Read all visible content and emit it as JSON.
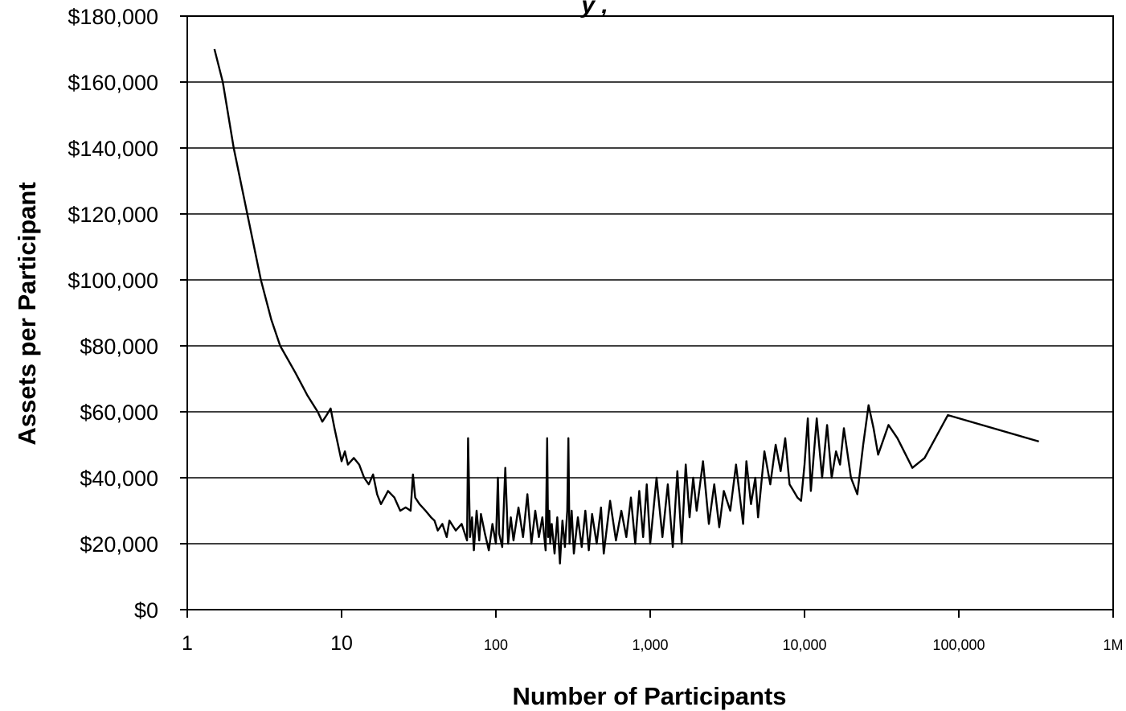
{
  "chart_data": {
    "type": "line",
    "title_fragment": "y ,",
    "xlabel": "Number of Participants",
    "ylabel": "Assets per Participant",
    "x_scale": "log",
    "xlim": [
      1,
      1000000
    ],
    "ylim": [
      0,
      180000
    ],
    "grid": "horizontal",
    "legend": "none",
    "line_color": "#000000",
    "y_ticks": [
      {
        "value": 0,
        "label": "$0"
      },
      {
        "value": 20000,
        "label": "$20,000"
      },
      {
        "value": 40000,
        "label": "$40,000"
      },
      {
        "value": 60000,
        "label": "$60,000"
      },
      {
        "value": 80000,
        "label": "$80,000"
      },
      {
        "value": 100000,
        "label": "$100,000"
      },
      {
        "value": 120000,
        "label": "$120,000"
      },
      {
        "value": 140000,
        "label": "$140,000"
      },
      {
        "value": 160000,
        "label": "$160,000"
      },
      {
        "value": 180000,
        "label": "$180,000"
      }
    ],
    "x_ticks": [
      {
        "value": 1,
        "label": "1",
        "style": "big"
      },
      {
        "value": 10,
        "label": "10",
        "style": "big"
      },
      {
        "value": 100,
        "label": "100",
        "style": "small"
      },
      {
        "value": 1000,
        "label": "1,000",
        "style": "small"
      },
      {
        "value": 10000,
        "label": "10,000",
        "style": "small"
      },
      {
        "value": 100000,
        "label": "100,000",
        "style": "small"
      },
      {
        "value": 1000000,
        "label": "1M",
        "style": "small"
      }
    ],
    "series": [
      {
        "x": [
          1.5,
          1.7,
          2,
          2.5,
          3,
          3.5,
          4,
          5,
          6,
          7,
          7.5,
          8,
          8.5,
          9,
          10,
          10.5,
          11,
          12,
          13,
          14,
          15,
          16,
          17,
          18,
          19,
          20,
          22,
          24,
          26,
          28,
          29,
          30,
          32,
          35,
          38,
          40,
          42,
          45,
          48,
          50,
          55,
          60,
          65,
          66,
          68,
          70,
          72,
          75,
          78,
          80,
          85,
          90,
          95,
          100,
          103,
          105,
          110,
          115,
          120,
          125,
          130,
          140,
          150,
          160,
          170,
          180,
          190,
          200,
          210,
          215,
          218,
          222,
          225,
          230,
          240,
          250,
          260,
          270,
          280,
          290,
          295,
          300,
          310,
          320,
          340,
          360,
          380,
          400,
          420,
          450,
          480,
          500,
          550,
          600,
          650,
          700,
          750,
          800,
          850,
          900,
          950,
          1000,
          1100,
          1200,
          1300,
          1400,
          1500,
          1600,
          1700,
          1800,
          1900,
          2000,
          2200,
          2400,
          2600,
          2800,
          3000,
          3300,
          3600,
          4000,
          4200,
          4500,
          4800,
          5000,
          5500,
          6000,
          6500,
          7000,
          7500,
          8000,
          8500,
          9000,
          9500,
          10000,
          10500,
          11000,
          12000,
          13000,
          14000,
          15000,
          16000,
          17000,
          18000,
          20000,
          22000,
          24000,
          26000,
          28000,
          30000,
          35000,
          40000,
          50000,
          60000,
          85000,
          330000
        ],
        "y": [
          170000,
          160000,
          140000,
          118000,
          100000,
          88000,
          80000,
          72000,
          65000,
          60000,
          57000,
          59000,
          61000,
          55000,
          45000,
          48000,
          44000,
          46000,
          44000,
          40000,
          38000,
          41000,
          35000,
          32000,
          34000,
          36000,
          34000,
          30000,
          31000,
          30000,
          41000,
          34000,
          32000,
          30000,
          28000,
          27000,
          24000,
          26000,
          22000,
          27000,
          24000,
          26000,
          21000,
          52000,
          22000,
          28000,
          18000,
          30000,
          21000,
          29000,
          23000,
          18000,
          26000,
          20000,
          40000,
          23000,
          19000,
          43000,
          20000,
          28000,
          21000,
          31000,
          22000,
          35000,
          20000,
          30000,
          22000,
          28000,
          18000,
          52000,
          22000,
          30000,
          20000,
          26000,
          17000,
          28000,
          14000,
          27000,
          19000,
          30000,
          52000,
          20000,
          30000,
          17000,
          28000,
          19000,
          30000,
          18000,
          29000,
          20000,
          31000,
          17000,
          33000,
          21000,
          30000,
          22000,
          34000,
          20000,
          36000,
          22000,
          38000,
          20000,
          40000,
          22000,
          38000,
          19000,
          42000,
          20000,
          44000,
          28000,
          40000,
          30000,
          45000,
          26000,
          38000,
          25000,
          36000,
          30000,
          44000,
          26000,
          45000,
          32000,
          40000,
          28000,
          48000,
          38000,
          50000,
          42000,
          52000,
          38000,
          36000,
          34000,
          33000,
          44000,
          58000,
          36000,
          58000,
          40000,
          56000,
          40000,
          48000,
          44000,
          55000,
          40000,
          35000,
          50000,
          62000,
          55000,
          47000,
          56000,
          52000,
          43000,
          46000,
          59000,
          51000
        ]
      }
    ]
  }
}
